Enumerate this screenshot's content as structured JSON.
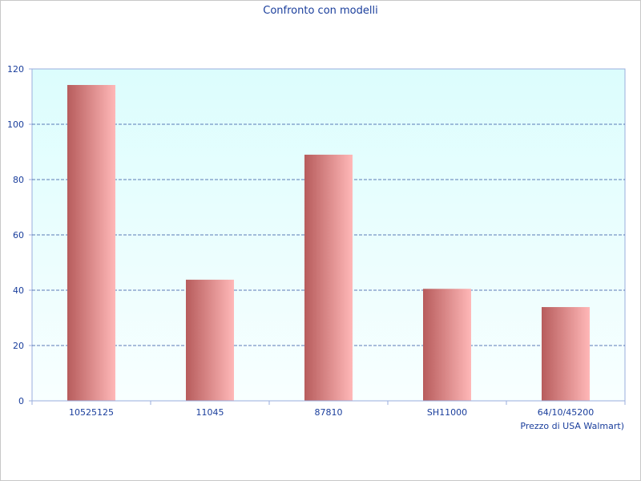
{
  "chart_data": {
    "type": "bar",
    "title": "Confronto con modelli",
    "xlabel": "Prezzo di USA Walmart)",
    "ylabel": "",
    "categories": [
      "10525125",
      "11045",
      "87810",
      "SH11000",
      "64/10/45200"
    ],
    "values": [
      114.2,
      43.8,
      89.0,
      40.5,
      33.9
    ],
    "ylim": [
      0,
      120
    ],
    "yticks": [
      0,
      20,
      40,
      60,
      80,
      100,
      120
    ],
    "grid": true,
    "legend": "none"
  },
  "colors": {
    "bar_dark": "#b75c5c",
    "bar_light": "#ffb8b8",
    "plot_bg_top": "#dcfdfd",
    "plot_bg_bottom": "#f8ffff",
    "grid": "#2d4fa0",
    "axis": "#9aaedc",
    "text": "#1a3e9c"
  }
}
